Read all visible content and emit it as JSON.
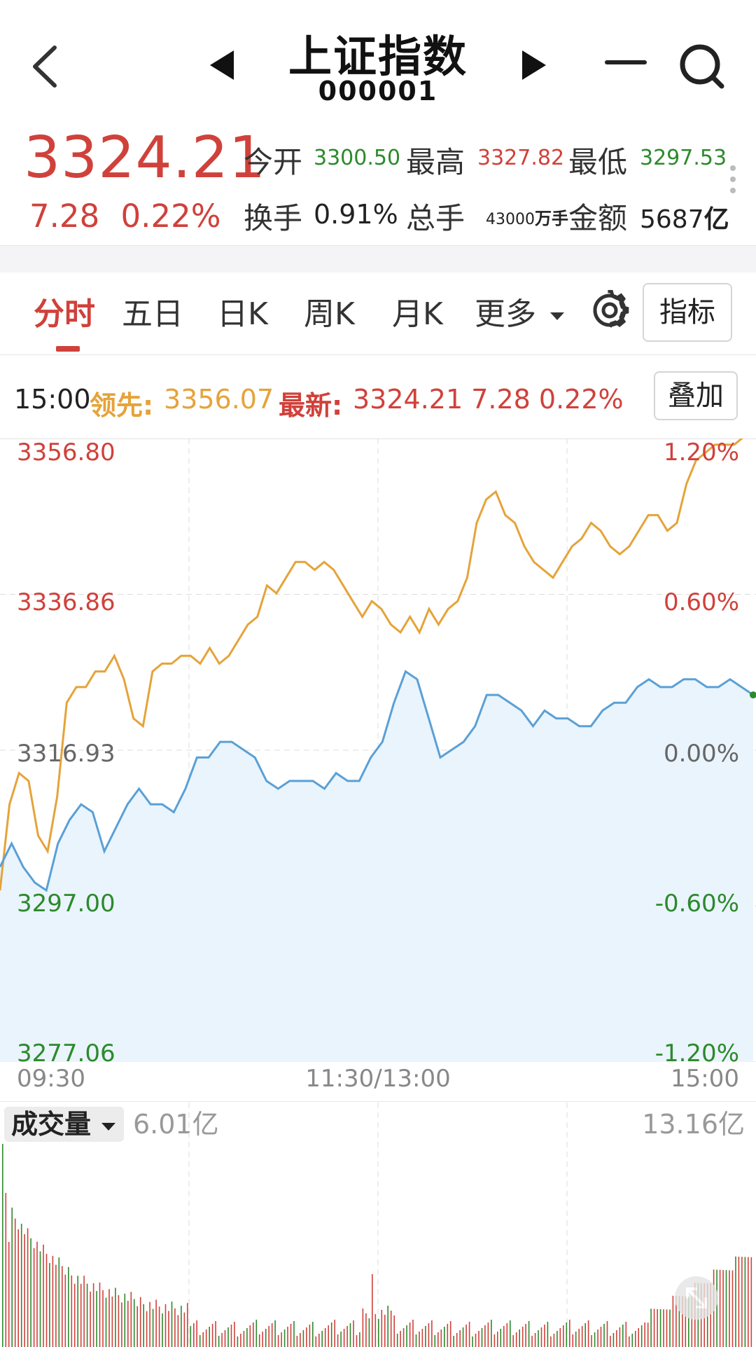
{
  "header": {
    "title": "上证指数",
    "code": "000001",
    "icons": [
      "back-arrow-icon",
      "prev-triangle-icon",
      "next-triangle-icon",
      "minus-icon",
      "search-icon"
    ]
  },
  "quote": {
    "price": "3324.21",
    "change": "7.28",
    "change_pct": "0.22%",
    "stats": {
      "open_label": "今开",
      "open": "3300.50",
      "high_label": "最高",
      "high": "3327.82",
      "low_label": "最低",
      "low": "3297.53",
      "turnover_label": "换手",
      "turnover": "0.91%",
      "volume_label": "总手",
      "volume_num": "43000",
      "volume_unit": "万手",
      "amount_label": "金额",
      "amount": "5687",
      "amount_unit": "亿"
    },
    "colors": {
      "up": "#d0413b",
      "down": "#2c8a2c"
    }
  },
  "tabs": {
    "items": [
      "分时",
      "五日",
      "日K",
      "周K",
      "月K",
      "更多"
    ],
    "active": "分时",
    "indicator_button": "指标",
    "overlay_button": "叠加"
  },
  "legend": {
    "time": "15:00",
    "leader_label": "领先:",
    "leader_value": "3356.07",
    "latest_label": "最新:",
    "latest_value": "3324.21 7.28 0.22%"
  },
  "chart_data": {
    "type": "line",
    "x_ticks": [
      "09:30",
      "11:30/13:00",
      "15:00"
    ],
    "y_ticks_left": [
      "3356.80",
      "3336.86",
      "3316.93",
      "3297.00",
      "3277.06"
    ],
    "y_ticks_right": [
      "1.20%",
      "0.60%",
      "0.00%",
      "-0.60%",
      "-1.20%"
    ],
    "ylim": [
      3277.06,
      3356.8
    ],
    "prev_close": 3316.93,
    "series": [
      {
        "color": "#e5a33a",
        "values": [
          3299,
          3310,
          3314,
          3313,
          3306,
          3304,
          3311,
          3323,
          3325,
          3325,
          3327,
          3327,
          3329,
          3326,
          3321,
          3320,
          3327,
          3328,
          3328,
          3329,
          3329,
          3328,
          3330,
          3328,
          3329,
          3331,
          3333,
          3334,
          3338,
          3337,
          3339,
          3341,
          3341,
          3340,
          3341,
          3340,
          3338,
          3336,
          3334,
          3336,
          3335,
          3333,
          3332,
          3334,
          3332,
          3335,
          3333,
          3335,
          3336,
          3339,
          3346,
          3349,
          3350,
          3347,
          3346,
          3343,
          3341,
          3340,
          3339,
          3341,
          3343,
          3344,
          3346,
          3345,
          3343,
          3342,
          3343,
          3345,
          3347,
          3347,
          3345,
          3346,
          3351,
          3354,
          3355,
          3356,
          3356,
          3356,
          3357,
          3357
        ]
      },
      {
        "color": "#5aa0d6",
        "values": [
          3302,
          3305,
          3302,
          3300,
          3299,
          3305,
          3308,
          3310,
          3309,
          3304,
          3307,
          3310,
          3312,
          3310,
          3310,
          3309,
          3312,
          3316,
          3316,
          3318,
          3318,
          3317,
          3316,
          3313,
          3312,
          3313,
          3313,
          3313,
          3312,
          3314,
          3313,
          3313,
          3316,
          3318,
          3323,
          3327,
          3326,
          3321,
          3316,
          3317,
          3318,
          3320,
          3324,
          3324,
          3323,
          3322,
          3320,
          3322,
          3321,
          3321,
          3320,
          3320,
          3322,
          3323,
          3323,
          3325,
          3326,
          3325,
          3325,
          3326,
          3326,
          3325,
          3325,
          3326,
          3325,
          3324
        ]
      }
    ]
  },
  "volume": {
    "label": "成交量",
    "avg": "6.01亿",
    "max": "13.16亿"
  }
}
